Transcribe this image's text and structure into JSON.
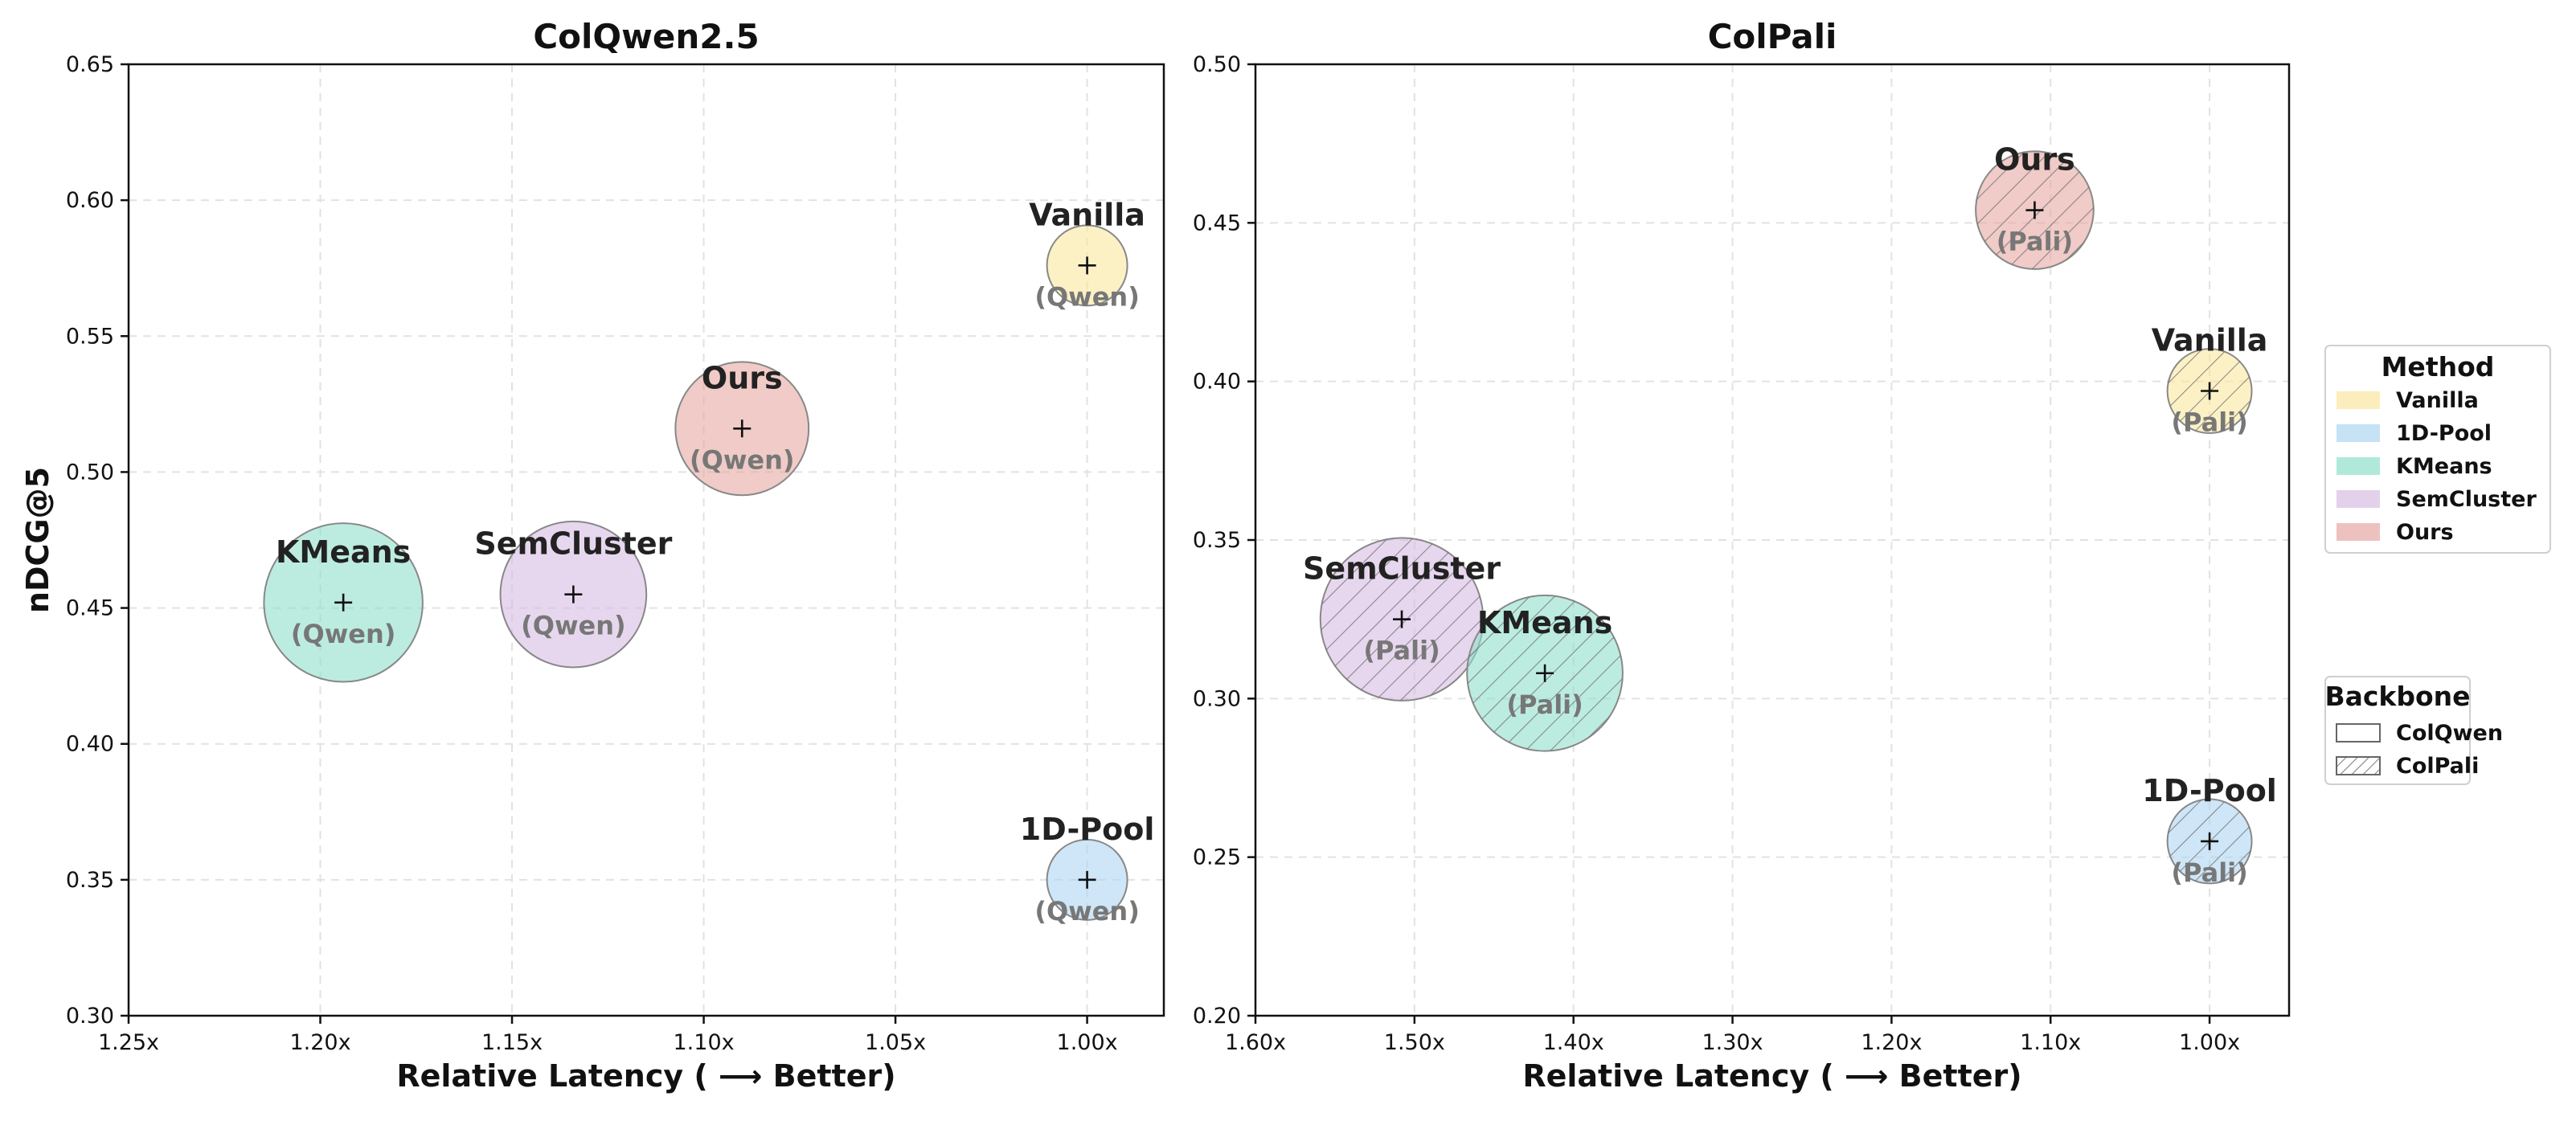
{
  "chart_data": [
    {
      "type": "scatter",
      "title": "ColQwen2.5",
      "xlabel": "Relative Latency ( ⟶ Better)",
      "ylabel": "nDCG@5",
      "xlim": [
        1.25,
        0.98
      ],
      "ylim": [
        0.3,
        0.65
      ],
      "xticks": [
        "1.25x",
        "1.20x",
        "1.15x",
        "1.10x",
        "1.05x",
        "1.00x"
      ],
      "xtick_values": [
        1.25,
        1.2,
        1.15,
        1.1,
        1.05,
        1.0
      ],
      "yticks": [
        "0.30",
        "0.35",
        "0.40",
        "0.45",
        "0.50",
        "0.55",
        "0.60",
        "0.65"
      ],
      "ytick_values": [
        0.3,
        0.35,
        0.4,
        0.45,
        0.5,
        0.55,
        0.6,
        0.65
      ],
      "backbone": "ColQwen",
      "grid": true,
      "points": [
        {
          "method": "KMeans",
          "sub": "(Qwen)",
          "x": 1.194,
          "y": 0.452,
          "size": 3.9,
          "color": "#8FE0CB"
        },
        {
          "method": "SemCluster",
          "sub": "(Qwen)",
          "x": 1.134,
          "y": 0.455,
          "size": 3.3,
          "color": "#D7BDE2"
        },
        {
          "method": "Ours",
          "sub": "(Qwen)",
          "x": 1.09,
          "y": 0.516,
          "size": 2.75,
          "color": "#E6A8A2"
        },
        {
          "method": "Vanilla",
          "sub": "(Qwen)",
          "x": 1.0,
          "y": 0.576,
          "size": 1.0,
          "color": "#F9E79F"
        },
        {
          "method": "1D-Pool",
          "sub": "(Qwen)",
          "x": 1.0,
          "y": 0.35,
          "size": 1.0,
          "color": "#AED6F1"
        }
      ]
    },
    {
      "type": "scatter",
      "title": "ColPali",
      "xlabel": "Relative Latency ( ⟶ Better)",
      "ylabel": "",
      "xlim": [
        1.6,
        0.95
      ],
      "ylim": [
        0.2,
        0.5
      ],
      "xticks": [
        "1.60x",
        "1.50x",
        "1.40x",
        "1.30x",
        "1.20x",
        "1.10x",
        "1.00x"
      ],
      "xtick_values": [
        1.6,
        1.5,
        1.4,
        1.3,
        1.2,
        1.1,
        1.0
      ],
      "yticks": [
        "0.20",
        "0.25",
        "0.30",
        "0.35",
        "0.40",
        "0.45",
        "0.50"
      ],
      "ytick_values": [
        0.2,
        0.25,
        0.3,
        0.35,
        0.4,
        0.45,
        0.5
      ],
      "backbone": "ColPali",
      "grid": true,
      "points": [
        {
          "method": "KMeans",
          "sub": "(Pali)",
          "x": 1.418,
          "y": 0.308,
          "size": 3.75,
          "color": "#8FE0CB"
        },
        {
          "method": "SemCluster",
          "sub": "(Pali)",
          "x": 1.508,
          "y": 0.325,
          "size": 4.1,
          "color": "#D7BDE2"
        },
        {
          "method": "Ours",
          "sub": "(Pali)",
          "x": 1.11,
          "y": 0.454,
          "size": 2.15,
          "color": "#E6A8A2"
        },
        {
          "method": "Vanilla",
          "sub": "(Pali)",
          "x": 1.0,
          "y": 0.397,
          "size": 1.1,
          "color": "#F9E79F"
        },
        {
          "method": "1D-Pool",
          "sub": "(Pali)",
          "x": 1.0,
          "y": 0.255,
          "size": 1.1,
          "color": "#AED6F1"
        }
      ]
    }
  ],
  "legend_method": {
    "title": "Method",
    "items": [
      {
        "label": "Vanilla",
        "color": "#F9E79F"
      },
      {
        "label": "1D-Pool",
        "color": "#AED6F1"
      },
      {
        "label": "KMeans",
        "color": "#8FE0CB"
      },
      {
        "label": "SemCluster",
        "color": "#D7BDE2"
      },
      {
        "label": "Ours",
        "color": "#E6A8A2"
      }
    ]
  },
  "legend_backbone": {
    "title": "Backbone",
    "items": [
      {
        "label": "ColQwen",
        "hatch": false
      },
      {
        "label": "ColPali",
        "hatch": true
      }
    ]
  }
}
